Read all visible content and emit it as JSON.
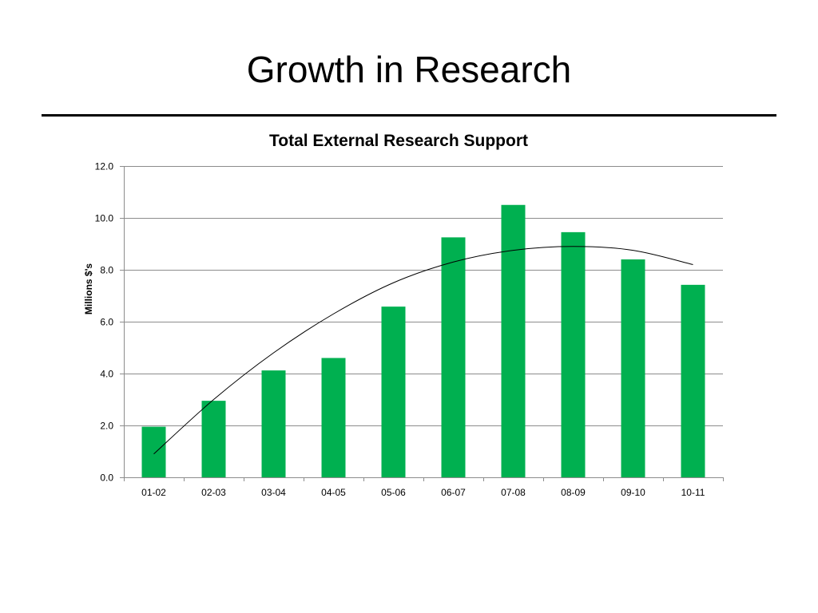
{
  "slide": {
    "title": "Growth in Research"
  },
  "chart_data": {
    "type": "bar",
    "title": "Total External Research Support",
    "xlabel": "",
    "ylabel": "Millions $'s",
    "categories": [
      "01-02",
      "02-03",
      "03-04",
      "04-05",
      "05-06",
      "06-07",
      "07-08",
      "08-09",
      "09-10",
      "10-11"
    ],
    "values": [
      1.95,
      2.95,
      4.12,
      4.6,
      6.58,
      9.25,
      10.5,
      9.45,
      8.4,
      7.42
    ],
    "ylim": [
      0,
      12
    ],
    "yticks": [
      "0.0",
      "2.0",
      "4.0",
      "6.0",
      "8.0",
      "10.0",
      "12.0"
    ],
    "grid": true,
    "bar_color": "#00b050",
    "trendline": {
      "type": "polynomial",
      "values": [
        0.9,
        3.0,
        4.8,
        6.3,
        7.5,
        8.3,
        8.75,
        8.9,
        8.75,
        8.2
      ]
    }
  }
}
